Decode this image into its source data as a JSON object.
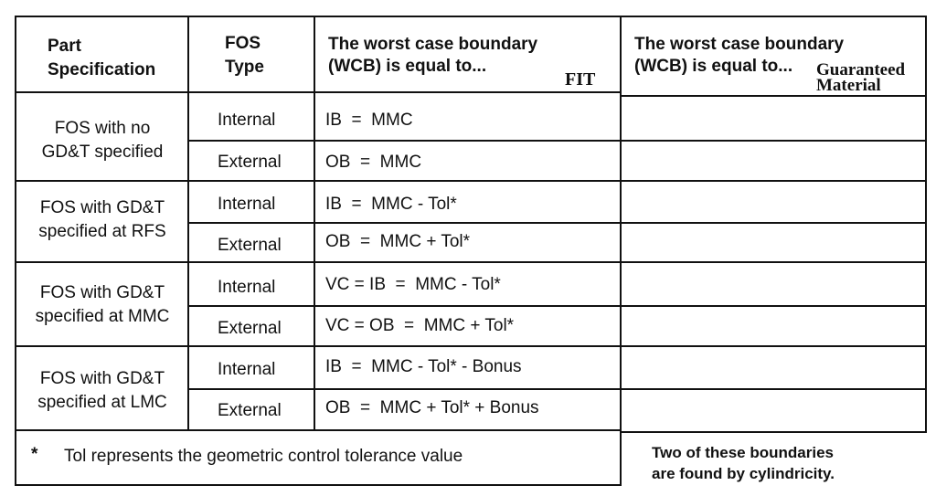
{
  "header": {
    "part_spec": "Part\nSpecification",
    "fos_type": "FOS\nType",
    "wcb_fit": "The worst case boundary\n(WCB) is equal to...",
    "fit_tag": "FIT",
    "wcb_material": "The worst case boundary\n(WCB) is equal to...",
    "material_tag": "Guaranteed\nMaterial"
  },
  "rows": [
    {
      "spec": "FOS with no\nGD&T specified",
      "internal_label": "Internal",
      "internal_formula": "IB  =  MMC",
      "external_label": "External",
      "external_formula": "OB  =  MMC"
    },
    {
      "spec": "FOS with GD&T\nspecified at RFS",
      "internal_label": "Internal",
      "internal_formula": "IB  =  MMC - Tol*",
      "external_label": "External",
      "external_formula": "OB  =  MMC + Tol*"
    },
    {
      "spec": "FOS with GD&T\nspecified at MMC",
      "internal_label": "Internal",
      "internal_formula": "VC = IB  =  MMC - Tol*",
      "external_label": "External",
      "external_formula": "VC = OB  =  MMC + Tol*"
    },
    {
      "spec": "FOS with GD&T\nspecified at LMC",
      "internal_label": "Internal",
      "internal_formula": "IB  =  MMC - Tol* - Bonus",
      "external_label": "External",
      "external_formula": "OB  =  MMC + Tol* + Bonus"
    }
  ],
  "footnote": {
    "marker": "*",
    "text": "Tol represents the geometric control tolerance value"
  },
  "side_note": "Two of these boundaries\nare found by cylindricity."
}
